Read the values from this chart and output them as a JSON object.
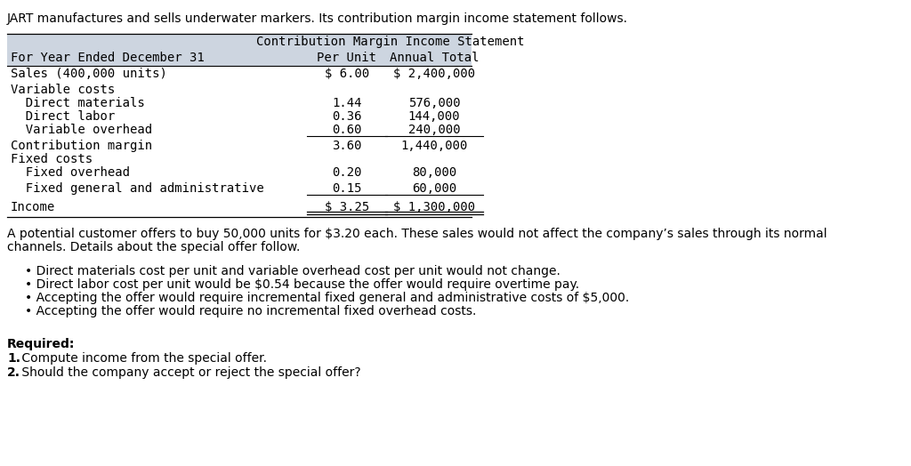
{
  "title_text": "JART manufactures and sells underwater markers. Its contribution margin income statement follows.",
  "table_header_title": "Contribution Margin Income Statement",
  "table_col1_header": "For Year Ended December 31",
  "table_col2_header": "Per Unit",
  "table_col3_header": "Annual Total",
  "table_rows": [
    {
      "label": "Sales (400,000 units)",
      "per_unit": "$ 6.00",
      "annual": "$ 2,400,000",
      "indent": 0
    },
    {
      "label": "Variable costs",
      "per_unit": "",
      "annual": "",
      "indent": 0
    },
    {
      "label": "  Direct materials",
      "per_unit": "1.44",
      "annual": "576,000",
      "indent": 0
    },
    {
      "label": "  Direct labor",
      "per_unit": "0.36",
      "annual": "144,000",
      "indent": 0
    },
    {
      "label": "  Variable overhead",
      "per_unit": "0.60",
      "annual": "240,000",
      "indent": 0,
      "underline": true
    },
    {
      "label": "Contribution margin",
      "per_unit": "3.60",
      "annual": "1,440,000",
      "indent": 0
    },
    {
      "label": "Fixed costs",
      "per_unit": "",
      "annual": "",
      "indent": 0
    },
    {
      "label": "  Fixed overhead",
      "per_unit": "0.20",
      "annual": "80,000",
      "indent": 0
    },
    {
      "label": "  Fixed general and administrative",
      "per_unit": "0.15",
      "annual": "60,000",
      "indent": 0,
      "underline": true
    },
    {
      "label": "Income",
      "per_unit": "$ 3.25",
      "annual": "$ 1,300,000",
      "indent": 0,
      "double_underline": true
    }
  ],
  "paragraph_line1": "A potential customer offers to buy 50,000 units for $3.20 each. These sales would not affect the company’s sales through its normal",
  "paragraph_line2": "channels. Details about the special offer follow.",
  "bullets": [
    "Direct materials cost per unit and variable overhead cost per unit would not change.",
    "Direct labor cost per unit would be $0.54 because the offer would require overtime pay.",
    "Accepting the offer would require incremental fixed general and administrative costs of $5,000.",
    "Accepting the offer would require no incremental fixed overhead costs."
  ],
  "required_label": "Required:",
  "required_items": [
    {
      "num": "1.",
      "text": " Compute income from the special offer."
    },
    {
      "num": "2.",
      "text": " Should the company accept or reject the special offer?"
    }
  ],
  "bg_color": "#ffffff",
  "table_header_bg": "#cdd5e0",
  "font_size": 10.0,
  "mono_font": "DejaVu Sans Mono",
  "sans_font": "DejaVu Sans"
}
